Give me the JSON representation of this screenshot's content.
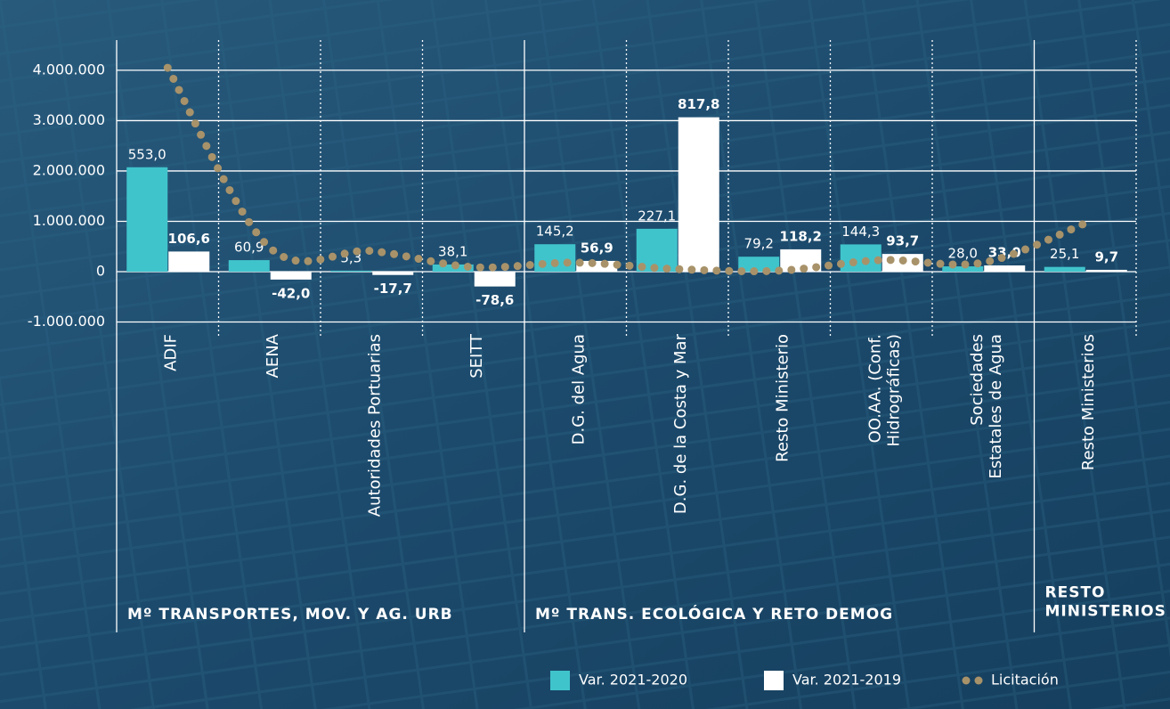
{
  "chart_data": {
    "type": "bar",
    "categories": [
      "ADIF",
      "AENA",
      "Autoridades Portuarias",
      "SEITT",
      "D.G. del Agua",
      "D.G. de la Costa y Mar",
      "Resto Ministerio",
      "OO.AA. (Conf.\nHidrográficas)",
      "Sociedades\nEstatales de Agua",
      "Resto Ministerios"
    ],
    "groups": [
      "Mº TRANSPORTES, MOV. Y AG. URB",
      "Mº TRANS. ECOLÓGICA Y RETO DEMOG",
      "RESTO\nMINISTERIOS"
    ],
    "series": [
      {
        "name": "Var. 2021-2020",
        "color": "#40c4cc",
        "axis": "y2",
        "values": [
          553.0,
          60.9,
          5.3,
          38.1,
          145.2,
          227.1,
          79.2,
          144.3,
          28.0,
          25.1
        ],
        "value_labels": [
          "553,0",
          "60,9",
          "5,3",
          "38,1",
          "145,2",
          "227,1",
          "79,2",
          "144,3",
          "28,0",
          "25,1"
        ]
      },
      {
        "name": "Var. 2021-2019",
        "color": "#ffffff",
        "axis": "y2",
        "values": [
          106.6,
          -42.0,
          -17.7,
          -78.6,
          56.9,
          817.8,
          118.2,
          93.7,
          33.0,
          9.7
        ],
        "value_labels": [
          "106,6",
          "-42,0",
          "-17,7",
          "-78,6",
          "56,9",
          "817,8",
          "118,2",
          "93,7",
          "33,0",
          "9,7"
        ]
      },
      {
        "name": "Licitación",
        "color": "#a8926a",
        "type": "line",
        "values": [
          4050000,
          480000,
          410000,
          90000,
          180000,
          50000,
          20000,
          230000,
          180000,
          960000
        ]
      }
    ],
    "ylim": [
      -1000000,
      4600000
    ],
    "yticks": [
      {
        "value": -1000000,
        "label": "-1.000.000"
      },
      0,
      {
        "value": 1000000,
        "label": "1.000.000"
      },
      {
        "value": 2000000,
        "label": "2.000.000"
      },
      {
        "value": 3000000,
        "label": "3.000.000"
      },
      {
        "value": 4000000,
        "label": "4.000.000"
      }
    ],
    "y2lim": [
      -266.7,
      1226.7
    ],
    "grid": true
  }
}
